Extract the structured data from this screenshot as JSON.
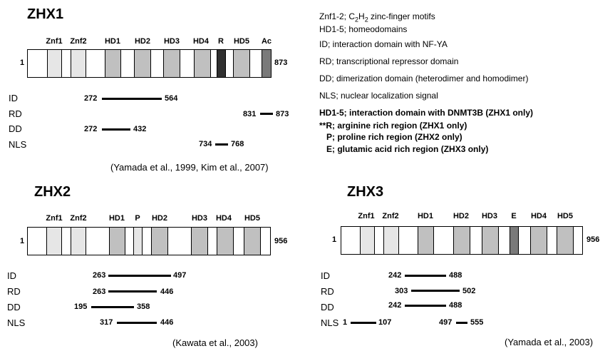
{
  "zhx1": {
    "title": "ZHX1",
    "start": "1",
    "end": "873",
    "domains": [
      "Znf1",
      "Znf2",
      "HD1",
      "HD2",
      "HD3",
      "HD4",
      "R",
      "HD5",
      "Ac"
    ],
    "rows": [
      {
        "label": "ID",
        "from": "272",
        "to": "564"
      },
      {
        "label": "RD",
        "from": "831",
        "to": "873"
      },
      {
        "label": "DD",
        "from": "272",
        "to": "432"
      },
      {
        "label": "NLS",
        "from": "734",
        "to": "768"
      }
    ],
    "citation": "(Yamada et al., 1999, Kim et al., 2007)"
  },
  "zhx2": {
    "title": "ZHX2",
    "start": "1",
    "end": "956",
    "domains": [
      "Znf1",
      "Znf2",
      "HD1",
      "P",
      "HD2",
      "HD3",
      "HD4",
      "HD5"
    ],
    "rows": [
      {
        "label": "ID",
        "from": "263",
        "to": "497"
      },
      {
        "label": "RD",
        "from": "263",
        "to": "446"
      },
      {
        "label": "DD",
        "from": "195",
        "to": "358"
      },
      {
        "label": "NLS",
        "from": "317",
        "to": "446"
      }
    ],
    "citation": "(Kawata et al., 2003)"
  },
  "zhx3": {
    "title": "ZHX3",
    "start": "1",
    "end": "956",
    "domains": [
      "Znf1",
      "Znf2",
      "HD1",
      "HD2",
      "HD3",
      "E",
      "HD4",
      "HD5"
    ],
    "rows": [
      {
        "label": "ID",
        "from": "242",
        "to": "488"
      },
      {
        "label": "RD",
        "from": "303",
        "to": "502"
      },
      {
        "label": "DD",
        "from": "242",
        "to": "488"
      },
      {
        "label": "NLS",
        "from": "1",
        "to": "107",
        "from2": "497",
        "to2": "555"
      }
    ],
    "citation": "(Yamada et al., 2003)"
  },
  "legend": {
    "line1_a": "Znf1-2; C",
    "line1_sub1": "2",
    "line1_b": "H",
    "line1_sub2": "2",
    "line1_c": " zinc-finger motifs",
    "line2": "HD1-5; homeodomains",
    "line3": "ID; interaction domain with NF-YA",
    "line4": "RD; transcriptional repressor domain",
    "line5": "DD; dimerization domain (heterodimer and homodimer)",
    "line6": "NLS; nuclear localization signal",
    "line7": "HD1-5; interaction domain with DNMT3B (ZHX1 only)",
    "line8": "**R; arginine rich region (ZHX1 only)",
    "line9": "P; proline rich region (ZHX2 only)",
    "line10": "E; glutamic acid rich region (ZHX3 only)"
  },
  "colors": {
    "light": "#e6e6e6",
    "mid": "#c0c0c0",
    "dark": "#303030",
    "darkgray": "#7a7a7a"
  }
}
